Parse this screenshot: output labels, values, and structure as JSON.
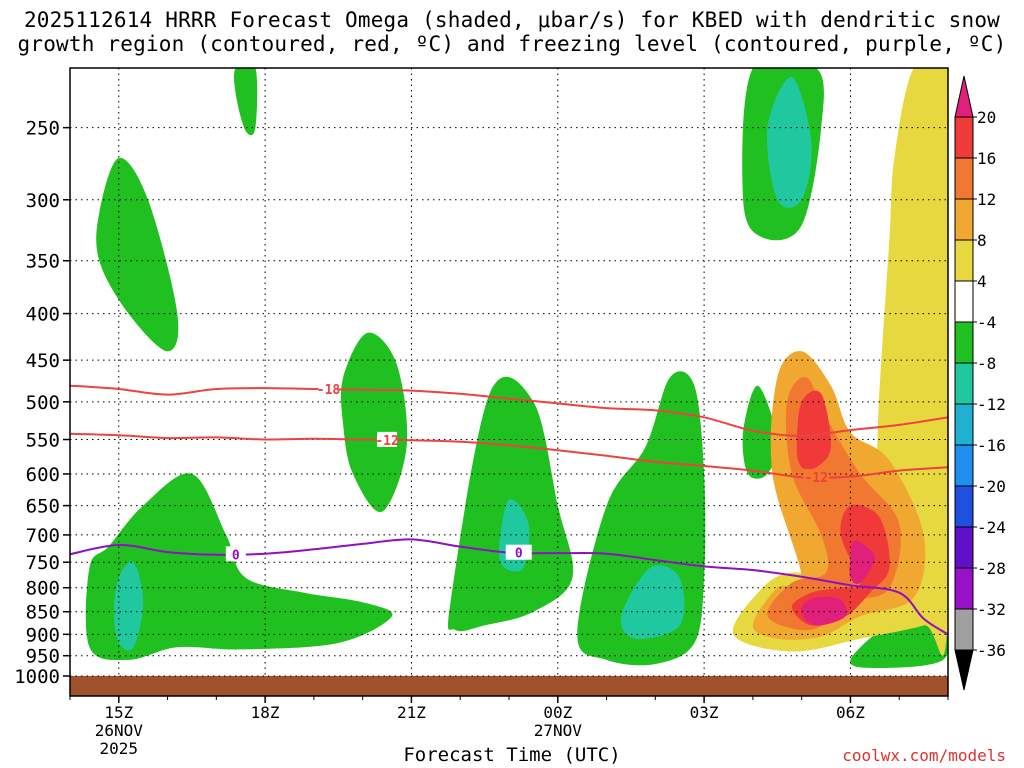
{
  "title": {
    "line1": "2025112614 HRRR Forecast Omega (shaded, μbar/s) for KBED with dendritic snow",
    "line2": "growth region (contoured, red, ºC) and freezing level (contoured, purple, ºC)"
  },
  "xlabel": "Forecast Time (UTC)",
  "credit": "coolwx.com/models",
  "chart_data": {
    "type": "heatmap",
    "title": "2025112614 HRRR Forecast Omega (shaded, μbar/s) for KBED with dendritic snow growth region (contoured, red, ºC) and freezing level (contoured, purple, ºC)",
    "xlabel": "Forecast Time (UTC)",
    "ylabel": "",
    "y_scale": "log-pressure (hPa), reversed",
    "y_ticks": [
      250,
      300,
      350,
      400,
      450,
      500,
      550,
      600,
      650,
      700,
      750,
      800,
      850,
      900,
      950,
      1000
    ],
    "x_ticks": [
      {
        "hour": 15,
        "label": "15Z",
        "sub1": "26NOV",
        "sub2": "2025"
      },
      {
        "hour": 18,
        "label": "18Z",
        "sub1": "",
        "sub2": ""
      },
      {
        "hour": 21,
        "label": "21Z",
        "sub1": "",
        "sub2": ""
      },
      {
        "hour": 24,
        "label": "00Z",
        "sub1": "27NOV",
        "sub2": ""
      },
      {
        "hour": 27,
        "label": "03Z",
        "sub1": "",
        "sub2": ""
      },
      {
        "hour": 30,
        "label": "06Z",
        "sub1": "",
        "sub2": ""
      }
    ],
    "xlim": [
      14,
      32
    ],
    "ylim": [
      1000,
      215
    ],
    "grid": true,
    "colorbar": {
      "labels": [
        "20",
        "16",
        "12",
        "8",
        "4",
        "-4",
        "-8",
        "-12",
        "-16",
        "-20",
        "-24",
        "-28",
        "-32",
        "-36"
      ],
      "colors": [
        "#e0207a",
        "#f03a3a",
        "#f07830",
        "#f0a830",
        "#e8d840",
        "#ffffff",
        "#20c020",
        "#20c8a0",
        "#20b0d0",
        "#2090f0",
        "#2050e0",
        "#6010c8",
        "#9810c8",
        "#a0a0a0",
        "#000000"
      ]
    },
    "contours": [
      {
        "name": "-18",
        "color": "#f04040",
        "points": [
          [
            14,
            480
          ],
          [
            15,
            484
          ],
          [
            16,
            491
          ],
          [
            17,
            484
          ],
          [
            18,
            483
          ],
          [
            19,
            484
          ],
          [
            20,
            485
          ],
          [
            21,
            486
          ],
          [
            22,
            490
          ],
          [
            23,
            496
          ],
          [
            24,
            502
          ],
          [
            25,
            508
          ],
          [
            26,
            511
          ],
          [
            27,
            520
          ],
          [
            28,
            538
          ],
          [
            29,
            545
          ],
          [
            30,
            537
          ],
          [
            31,
            530
          ],
          [
            32,
            520
          ]
        ]
      },
      {
        "name": "-12",
        "color": "#f04040",
        "points": [
          [
            14,
            542
          ],
          [
            15,
            544
          ],
          [
            16,
            548
          ],
          [
            17,
            547
          ],
          [
            18,
            550
          ],
          [
            19,
            549
          ],
          [
            20,
            550
          ],
          [
            21,
            551
          ],
          [
            22,
            553
          ],
          [
            23,
            558
          ],
          [
            24,
            565
          ],
          [
            25,
            573
          ],
          [
            26,
            582
          ],
          [
            27,
            588
          ],
          [
            28,
            595
          ],
          [
            29,
            605
          ],
          [
            30,
            604
          ],
          [
            31,
            595
          ],
          [
            32,
            590
          ]
        ]
      },
      {
        "name": "0",
        "color": "#9010c0",
        "points": [
          [
            14,
            735
          ],
          [
            15,
            718
          ],
          [
            16,
            731
          ],
          [
            17,
            736
          ],
          [
            18,
            734
          ],
          [
            19,
            726
          ],
          [
            20,
            716
          ],
          [
            21,
            708
          ],
          [
            22,
            721
          ],
          [
            23,
            732
          ],
          [
            24,
            733
          ],
          [
            25,
            734
          ],
          [
            26,
            746
          ],
          [
            27,
            758
          ],
          [
            28,
            765
          ],
          [
            29,
            778
          ],
          [
            30,
            795
          ],
          [
            31,
            810
          ],
          [
            31.5,
            865
          ],
          [
            32,
            900
          ]
        ]
      }
    ],
    "shaded_regions": [
      {
        "value": -6,
        "color": "#20c020",
        "pts": [
          [
            14.4,
            760
          ],
          [
            14.8,
            720
          ],
          [
            15.5,
            650
          ],
          [
            16.5,
            600
          ],
          [
            17.2,
            700
          ],
          [
            17.6,
            780
          ],
          [
            18.8,
            810
          ],
          [
            20,
            830
          ],
          [
            20.6,
            860
          ],
          [
            19.5,
            920
          ],
          [
            17.5,
            935
          ],
          [
            16.2,
            930
          ],
          [
            15.2,
            960
          ],
          [
            14.4,
            930
          ]
        ]
      },
      {
        "value": -6,
        "color": "#20c020",
        "pts": [
          [
            14.6,
            310
          ],
          [
            15.0,
            270
          ],
          [
            15.6,
            300
          ],
          [
            16.2,
            400
          ],
          [
            16.0,
            440
          ],
          [
            15.2,
            400
          ],
          [
            14.6,
            350
          ]
        ]
      },
      {
        "value": -6,
        "color": "#20c020",
        "pts": [
          [
            17.4,
            215
          ],
          [
            17.8,
            215
          ],
          [
            17.8,
            250
          ],
          [
            17.6,
            252
          ],
          [
            17.4,
            230
          ]
        ]
      },
      {
        "value": -6,
        "color": "#20c020",
        "pts": [
          [
            19.6,
            470
          ],
          [
            20.1,
            420
          ],
          [
            20.7,
            455
          ],
          [
            20.9,
            560
          ],
          [
            20.4,
            660
          ],
          [
            19.8,
            600
          ],
          [
            19.6,
            530
          ]
        ]
      },
      {
        "value": -6,
        "color": "#20c020",
        "pts": [
          [
            21.8,
            830
          ],
          [
            22.6,
            490
          ],
          [
            23.5,
            500
          ],
          [
            24.0,
            650
          ],
          [
            24.3,
            780
          ],
          [
            23.5,
            850
          ],
          [
            22.5,
            880
          ],
          [
            21.9,
            890
          ]
        ]
      },
      {
        "value": -6,
        "color": "#20c020",
        "pts": [
          [
            24.4,
            900
          ],
          [
            25.0,
            650
          ],
          [
            25.8,
            560
          ],
          [
            26.3,
            470
          ],
          [
            26.8,
            480
          ],
          [
            27.0,
            600
          ],
          [
            27.0,
            780
          ],
          [
            26.8,
            920
          ],
          [
            26,
            970
          ],
          [
            25,
            960
          ]
        ]
      },
      {
        "value": -6,
        "color": "#20c020",
        "pts": [
          [
            28.0,
            215
          ],
          [
            29.3,
            215
          ],
          [
            29.4,
            250
          ],
          [
            29.0,
            320
          ],
          [
            28.2,
            330
          ],
          [
            27.8,
            300
          ]
        ]
      },
      {
        "value": -6,
        "color": "#20c020",
        "pts": [
          [
            27.8,
            540
          ],
          [
            28.1,
            480
          ],
          [
            28.5,
            550
          ],
          [
            28.3,
            600
          ],
          [
            27.9,
            600
          ]
        ]
      },
      {
        "value": -6,
        "color": "#20c020",
        "pts": [
          [
            30.0,
            960
          ],
          [
            30.8,
            880
          ],
          [
            31.8,
            870
          ],
          [
            31.9,
            960
          ],
          [
            30.5,
            980
          ]
        ]
      },
      {
        "value": -10,
        "color": "#20c8a0",
        "pts": [
          [
            15.0,
            780
          ],
          [
            15.3,
            750
          ],
          [
            15.5,
            830
          ],
          [
            15.3,
            930
          ],
          [
            15.0,
            920
          ],
          [
            14.9,
            850
          ]
        ]
      },
      {
        "value": -10,
        "color": "#20c8a0",
        "pts": [
          [
            25.3,
            860
          ],
          [
            25.9,
            760
          ],
          [
            26.5,
            780
          ],
          [
            26.5,
            880
          ],
          [
            25.6,
            910
          ]
        ]
      },
      {
        "value": -10,
        "color": "#20c8a0",
        "pts": [
          [
            22.8,
            720
          ],
          [
            23.0,
            640
          ],
          [
            23.4,
            680
          ],
          [
            23.3,
            760
          ],
          [
            22.9,
            760
          ]
        ]
      },
      {
        "value": -10,
        "color": "#20c8a0",
        "pts": [
          [
            28.3,
            250
          ],
          [
            28.8,
            220
          ],
          [
            29.2,
            260
          ],
          [
            29.0,
            300
          ],
          [
            28.5,
            300
          ]
        ]
      },
      {
        "value": 6,
        "color": "#e8d840",
        "pts": [
          [
            27.6,
            900
          ],
          [
            28.2,
            800
          ],
          [
            28.8,
            770
          ],
          [
            29.7,
            780
          ],
          [
            30.4,
            720
          ],
          [
            30.6,
            480
          ],
          [
            30.8,
            330
          ],
          [
            30.9,
            270
          ],
          [
            31.3,
            215
          ],
          [
            32,
            215
          ],
          [
            32,
            850
          ],
          [
            31.5,
            880
          ],
          [
            30.2,
            910
          ],
          [
            28.8,
            940
          ]
        ]
      },
      {
        "value": 10,
        "color": "#f0a830",
        "pts": [
          [
            28.0,
            880
          ],
          [
            28.5,
            800
          ],
          [
            29.0,
            780
          ],
          [
            28.4,
            600
          ],
          [
            28.5,
            470
          ],
          [
            29.0,
            440
          ],
          [
            29.6,
            480
          ],
          [
            30,
            540
          ],
          [
            30.8,
            580
          ],
          [
            31.5,
            700
          ],
          [
            31.3,
            820
          ],
          [
            30.2,
            860
          ],
          [
            29.4,
            905
          ],
          [
            28.5,
            910
          ]
        ]
      },
      {
        "value": 14,
        "color": "#f07830",
        "pts": [
          [
            28.3,
            860
          ],
          [
            28.8,
            790
          ],
          [
            29.5,
            770
          ],
          [
            29.4,
            700
          ],
          [
            28.8,
            600
          ],
          [
            28.7,
            500
          ],
          [
            29.1,
            470
          ],
          [
            29.5,
            520
          ],
          [
            30.2,
            600
          ],
          [
            31.0,
            680
          ],
          [
            30.8,
            800
          ],
          [
            30,
            830
          ],
          [
            29.2,
            890
          ]
        ]
      },
      {
        "value": 18,
        "color": "#f03a3a",
        "pts": [
          [
            28.8,
            840
          ],
          [
            29.2,
            810
          ],
          [
            29.8,
            800
          ],
          [
            30.2,
            790
          ],
          [
            29.8,
            700
          ],
          [
            30.0,
            650
          ],
          [
            30.6,
            670
          ],
          [
            30.8,
            760
          ],
          [
            30.4,
            810
          ],
          [
            29.9,
            860
          ],
          [
            29.2,
            880
          ]
        ]
      },
      {
        "value": 18,
        "color": "#f03a3a",
        "pts": [
          [
            28.9,
            560
          ],
          [
            29.0,
            500
          ],
          [
            29.4,
            490
          ],
          [
            29.6,
            560
          ],
          [
            29.3,
            590
          ],
          [
            29.0,
            590
          ]
        ]
      },
      {
        "value": 22,
        "color": "#e0207a",
        "pts": [
          [
            29.0,
            840
          ],
          [
            29.3,
            820
          ],
          [
            29.8,
            825
          ],
          [
            29.9,
            860
          ],
          [
            29.4,
            880
          ],
          [
            29.1,
            870
          ]
        ]
      },
      {
        "value": 22,
        "color": "#e0207a",
        "pts": [
          [
            30.0,
            740
          ],
          [
            30.1,
            710
          ],
          [
            30.5,
            740
          ],
          [
            30.2,
            790
          ],
          [
            30.0,
            780
          ]
        ]
      }
    ],
    "ground_color": "#a0522d"
  }
}
